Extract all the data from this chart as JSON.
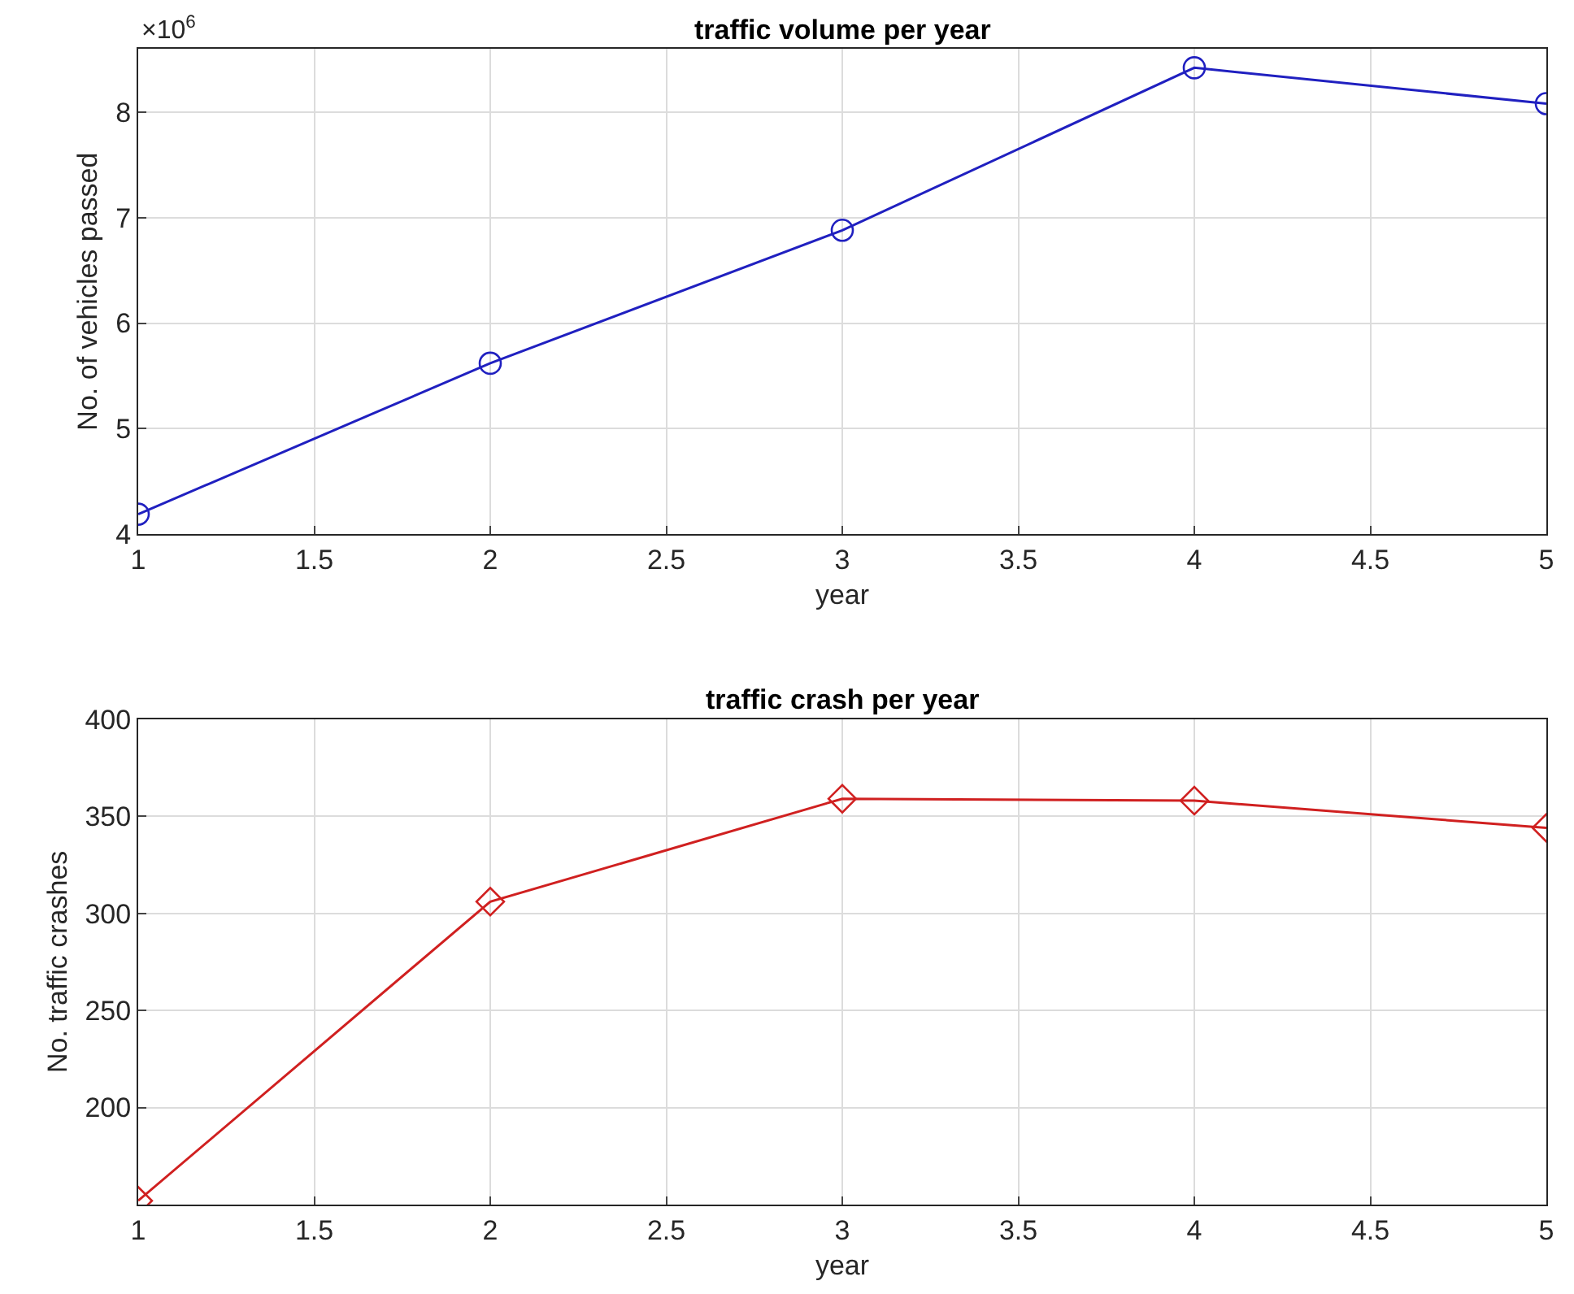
{
  "chart_data": [
    {
      "type": "line",
      "title": "traffic volume per year",
      "xlabel": "year",
      "ylabel": "No. of vehicles passed",
      "annotations": [
        "×10$^{6}$"
      ],
      "x": [
        1,
        2,
        3,
        4,
        5
      ],
      "series": [
        {
          "color": "#2020c0",
          "values": [
            4.19,
            5.62,
            6.88,
            8.42,
            8.08
          ]
        }
      ],
      "xlim": [
        1,
        5
      ],
      "xticks": [
        1,
        {
          "value": 1.5,
          "label": "1.5"
        },
        2,
        {
          "value": 2.5,
          "label": "2.5"
        },
        3,
        {
          "value": 3.5,
          "label": "3.5"
        },
        4,
        {
          "value": 4.5,
          "label": "4.5"
        },
        5
      ],
      "ylim": [
        4,
        8.6
      ],
      "yticks": [
        4,
        5,
        6,
        7,
        8
      ],
      "grid": true,
      "marker": "circle",
      "line_style": "solid"
    },
    {
      "type": "line",
      "title": "traffic crash per year",
      "xlabel": "year",
      "ylabel": "No. traffic crashes",
      "x": [
        1,
        2,
        3,
        4,
        5
      ],
      "series": [
        {
          "color": "#d02020",
          "values": [
            152,
            306,
            359,
            358,
            344
          ]
        }
      ],
      "xlim": [
        1,
        5
      ],
      "xticks": [
        1,
        {
          "value": 1.5,
          "label": "1.5"
        },
        2,
        {
          "value": 2.5,
          "label": "2.5"
        },
        3,
        {
          "value": 3.5,
          "label": "3.5"
        },
        4,
        {
          "value": 4.5,
          "label": "4.5"
        },
        5
      ],
      "ylim": [
        150,
        400
      ],
      "yticks": [
        200,
        250,
        300,
        350,
        400
      ],
      "grid": true,
      "marker": "diamond",
      "line_style": "solid"
    }
  ]
}
